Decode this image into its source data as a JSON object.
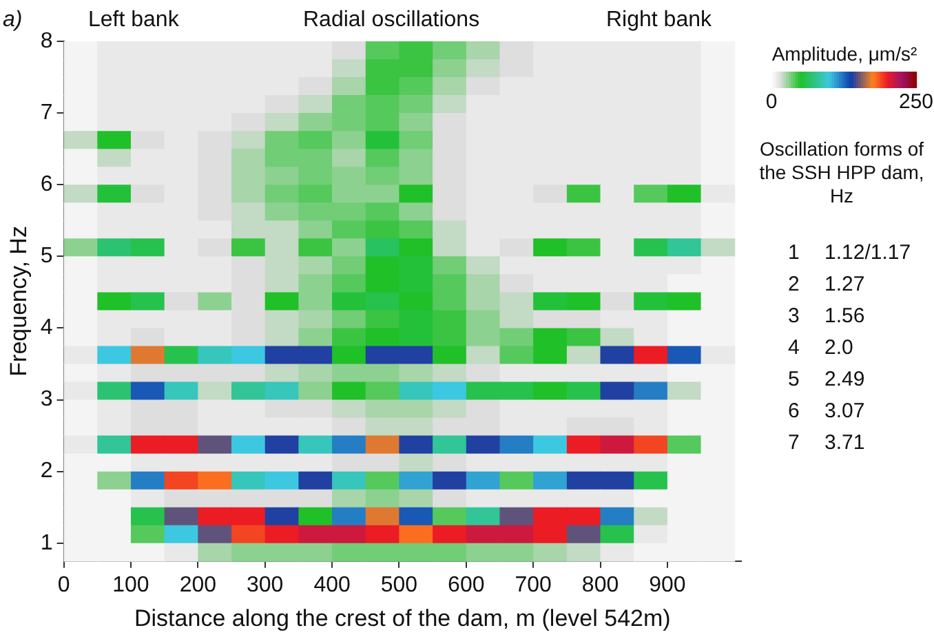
{
  "chart_data": {
    "type": "heatmap",
    "xlabel": "Distance along the crest of the dam, m (level 542m)",
    "ylabel": "Frequency, Hz",
    "clabel": "Amplitude, μm/s²",
    "annotations": [
      "a)",
      "Left bank",
      "Radial oscillations",
      "Right bank",
      "Oscillation forms of the SSH HPP dam, Hz",
      "1 1.12/1.17",
      "2 1.27",
      "3 1.56",
      "4 2.0",
      "5 2.49",
      "6 3.07",
      "7 3.71"
    ],
    "xlim": [
      0,
      1010
    ],
    "xticks": [
      0,
      100,
      200,
      300,
      400,
      500,
      600,
      700,
      800,
      900
    ],
    "ylim": [
      0.75,
      8
    ],
    "yticks": [
      1,
      2,
      3,
      4,
      5,
      6,
      7,
      8
    ],
    "clim": [
      0,
      250
    ],
    "cticks": [
      0,
      250
    ],
    "grid": false,
    "x": [
      25,
      75,
      125,
      175,
      225,
      275,
      325,
      375,
      425,
      475,
      525,
      575,
      625,
      675,
      725,
      775,
      825,
      875,
      925,
      975
    ],
    "y": [
      7.875,
      7.625,
      7.375,
      7.125,
      6.875,
      6.625,
      6.375,
      6.125,
      5.875,
      5.625,
      5.375,
      5.125,
      4.875,
      4.625,
      4.375,
      4.125,
      3.875,
      3.625,
      3.375,
      3.125,
      2.875,
      2.625,
      2.375,
      2.125,
      1.875,
      1.625,
      1.375,
      1.125,
      0.875
    ],
    "cells": [
      [
        5,
        10,
        10,
        10,
        10,
        10,
        10,
        10,
        15,
        40,
        45,
        35,
        25,
        15,
        10,
        10,
        10,
        10,
        10,
        5
      ],
      [
        5,
        10,
        10,
        10,
        10,
        10,
        10,
        10,
        20,
        45,
        45,
        30,
        20,
        15,
        10,
        10,
        10,
        10,
        10,
        5
      ],
      [
        5,
        10,
        10,
        10,
        10,
        10,
        10,
        15,
        25,
        45,
        40,
        25,
        15,
        10,
        10,
        10,
        10,
        10,
        10,
        5
      ],
      [
        5,
        10,
        10,
        10,
        10,
        10,
        15,
        20,
        35,
        40,
        35,
        20,
        10,
        10,
        10,
        10,
        10,
        10,
        10,
        5
      ],
      [
        5,
        10,
        10,
        10,
        10,
        15,
        20,
        30,
        35,
        40,
        30,
        15,
        10,
        10,
        10,
        10,
        10,
        10,
        10,
        5
      ],
      [
        20,
        50,
        15,
        10,
        15,
        20,
        35,
        40,
        30,
        55,
        35,
        15,
        10,
        10,
        10,
        10,
        10,
        10,
        10,
        5
      ],
      [
        5,
        20,
        10,
        10,
        15,
        25,
        35,
        35,
        25,
        40,
        30,
        15,
        10,
        10,
        10,
        10,
        10,
        10,
        10,
        5
      ],
      [
        5,
        10,
        10,
        10,
        15,
        25,
        30,
        35,
        30,
        35,
        30,
        15,
        10,
        10,
        10,
        10,
        10,
        10,
        10,
        5
      ],
      [
        20,
        55,
        15,
        10,
        15,
        25,
        35,
        40,
        30,
        30,
        50,
        15,
        10,
        10,
        15,
        45,
        10,
        40,
        50,
        10
      ],
      [
        5,
        10,
        10,
        10,
        15,
        20,
        30,
        35,
        35,
        40,
        30,
        15,
        10,
        10,
        10,
        10,
        10,
        10,
        10,
        5
      ],
      [
        5,
        10,
        10,
        10,
        10,
        20,
        20,
        30,
        40,
        45,
        40,
        20,
        10,
        10,
        10,
        10,
        10,
        10,
        10,
        5
      ],
      [
        30,
        70,
        60,
        10,
        15,
        45,
        20,
        45,
        30,
        65,
        50,
        20,
        10,
        15,
        50,
        45,
        10,
        60,
        80,
        20
      ],
      [
        5,
        10,
        10,
        10,
        10,
        15,
        20,
        25,
        35,
        50,
        55,
        35,
        20,
        10,
        10,
        10,
        10,
        10,
        10,
        5
      ],
      [
        5,
        10,
        10,
        10,
        10,
        15,
        20,
        30,
        40,
        50,
        55,
        40,
        25,
        15,
        10,
        10,
        10,
        10,
        5,
        5
      ],
      [
        5,
        50,
        60,
        15,
        30,
        15,
        50,
        30,
        55,
        60,
        50,
        40,
        25,
        20,
        55,
        50,
        15,
        55,
        50,
        5
      ],
      [
        5,
        10,
        10,
        10,
        10,
        15,
        20,
        25,
        35,
        45,
        55,
        45,
        30,
        20,
        15,
        15,
        10,
        10,
        5,
        5
      ],
      [
        5,
        10,
        15,
        10,
        10,
        15,
        20,
        30,
        45,
        50,
        55,
        45,
        30,
        35,
        50,
        45,
        20,
        10,
        5,
        5
      ],
      [
        10,
        100,
        170,
        60,
        90,
        100,
        140,
        140,
        50,
        140,
        140,
        50,
        20,
        40,
        50,
        20,
        140,
        200,
        130,
        10
      ],
      [
        5,
        10,
        15,
        15,
        15,
        15,
        20,
        25,
        30,
        30,
        25,
        20,
        15,
        10,
        10,
        10,
        10,
        10,
        5,
        5
      ],
      [
        10,
        70,
        130,
        90,
        20,
        80,
        90,
        30,
        50,
        40,
        90,
        100,
        60,
        60,
        50,
        60,
        140,
        120,
        20,
        5
      ],
      [
        5,
        10,
        15,
        15,
        10,
        10,
        15,
        15,
        20,
        25,
        25,
        20,
        15,
        10,
        10,
        10,
        10,
        10,
        5,
        5
      ],
      [
        5,
        10,
        15,
        15,
        10,
        10,
        10,
        10,
        15,
        20,
        20,
        15,
        15,
        10,
        10,
        15,
        15,
        10,
        5,
        5
      ],
      [
        10,
        80,
        200,
        200,
        150,
        100,
        140,
        90,
        120,
        170,
        140,
        80,
        140,
        120,
        100,
        200,
        210,
        190,
        40,
        5
      ],
      [
        5,
        5,
        10,
        10,
        10,
        10,
        10,
        10,
        15,
        15,
        20,
        15,
        10,
        10,
        10,
        10,
        10,
        10,
        5,
        5
      ],
      [
        5,
        30,
        120,
        190,
        180,
        90,
        100,
        140,
        90,
        40,
        110,
        140,
        110,
        40,
        110,
        140,
        140,
        60,
        5,
        5
      ],
      [
        5,
        5,
        10,
        15,
        15,
        15,
        15,
        15,
        25,
        30,
        25,
        15,
        10,
        10,
        10,
        10,
        10,
        5,
        5,
        5
      ],
      [
        5,
        5,
        60,
        150,
        200,
        200,
        140,
        50,
        120,
        170,
        130,
        40,
        80,
        150,
        200,
        200,
        120,
        20,
        5,
        5
      ],
      [
        5,
        5,
        40,
        100,
        150,
        190,
        200,
        210,
        210,
        200,
        180,
        200,
        210,
        210,
        200,
        150,
        60,
        10,
        5,
        5
      ],
      [
        5,
        5,
        5,
        10,
        25,
        30,
        30,
        30,
        35,
        35,
        35,
        35,
        30,
        30,
        25,
        20,
        10,
        5,
        5,
        5
      ]
    ]
  }
}
